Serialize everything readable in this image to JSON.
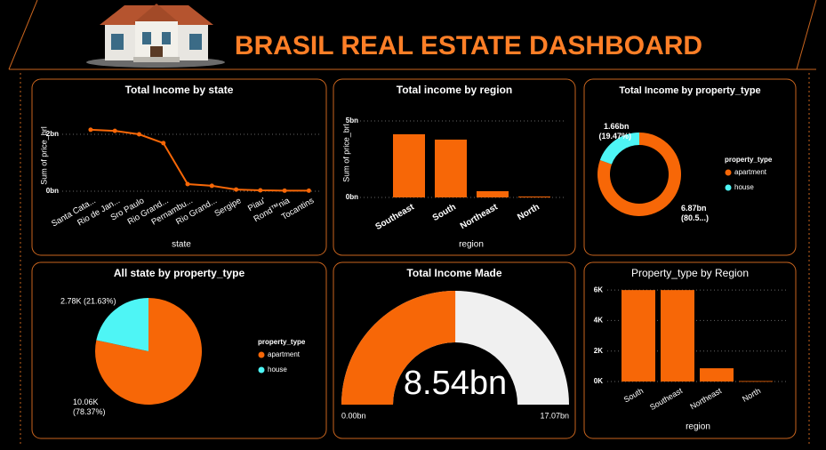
{
  "header": {
    "title": "BRASIL REAL ESTATE DASHBOARD"
  },
  "chart_data": [
    {
      "type": "line",
      "title": "Total Income by state",
      "x_label": "state",
      "y_label": "Sum of price_brl",
      "categories": [
        "Santa Cata...",
        "Rio de Jan...",
        "Sro Paulo",
        "Rio Grand...",
        "Pernambu...",
        "Rio Grand...",
        "Sergipe",
        "Piau'",
        "Rond™nia",
        "Tocantins"
      ],
      "values": [
        2.16,
        2.12,
        2.0,
        1.69,
        0.25,
        0.19,
        0.06,
        0.03,
        0.02,
        0.02
      ],
      "color": "#f76707",
      "ylim": [
        0,
        2.4
      ],
      "yticks": [
        {
          "value": 0,
          "label": "0bn"
        },
        {
          "value": 2,
          "label": "2bn"
        }
      ],
      "grid": true
    },
    {
      "type": "bar",
      "title": "Total income by region",
      "x_label": "region",
      "y_label": "Sum of price_brl",
      "categories": [
        "Southeast",
        "South",
        "Northeast",
        "North"
      ],
      "values": [
        4.13,
        3.78,
        0.41,
        0.06
      ],
      "color": "#f76707",
      "ylim": [
        0,
        5.5
      ],
      "yticks": [
        {
          "value": 0,
          "label": "0bn"
        },
        {
          "value": 5,
          "label": "5bn"
        }
      ],
      "grid": true
    },
    {
      "type": "donut",
      "title": "Total Income by property_type",
      "legend_title": "property_type",
      "categories": [
        "apartment",
        "house"
      ],
      "values": [
        6.87,
        1.66
      ],
      "value_labels": [
        "6.87bn (80.5...)",
        "1.66bn (19.47%)"
      ],
      "colors": [
        "#f76707",
        "#4ef5f5"
      ],
      "legend": "right"
    },
    {
      "type": "pie",
      "title": "All state by property_type",
      "legend_title": "property_type",
      "categories": [
        "apartment",
        "house"
      ],
      "values": [
        10060,
        2780
      ],
      "value_labels": [
        "10.06K (78.37%)",
        "2.78K (21.63%)"
      ],
      "colors": [
        "#f76707",
        "#4ef5f5"
      ],
      "legend": "right"
    },
    {
      "type": "gauge",
      "title": "Total Income Made",
      "value": 8.54,
      "value_label": "8.54bn",
      "range": [
        {
          "value": 0,
          "label": "0.00bn"
        },
        {
          "value": 17.07,
          "label": "17.07bn"
        }
      ],
      "color": "#f76707",
      "track_color": "#f0f0f0"
    },
    {
      "type": "bar",
      "title": "Property_type by Region",
      "x_label": "region",
      "categories": [
        "South",
        "Southeast",
        "Northeast",
        "North"
      ],
      "values": [
        6000,
        6000,
        870,
        30
      ],
      "color": "#f76707",
      "ylim": [
        0,
        6300
      ],
      "yticks": [
        {
          "value": 0,
          "label": "0K"
        },
        {
          "value": 2000,
          "label": "2K"
        },
        {
          "value": 4000,
          "label": "4K"
        },
        {
          "value": 6000,
          "label": "6K"
        }
      ],
      "grid": true
    }
  ]
}
